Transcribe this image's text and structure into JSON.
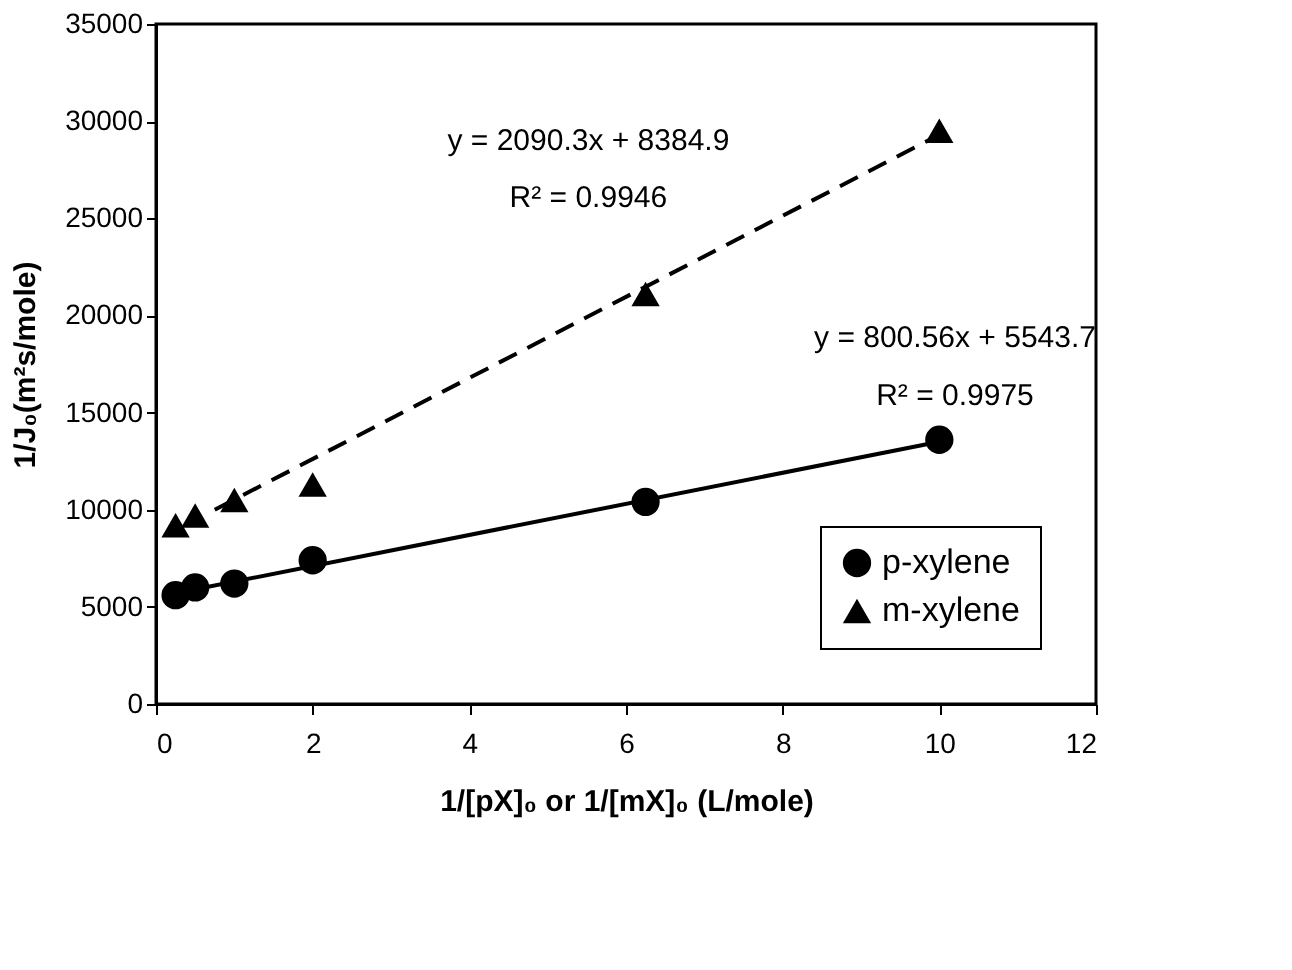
{
  "chart_data": {
    "type": "scatter",
    "xlabel": "1/[pX]₀ or 1/[mX]₀ (L/mole)",
    "ylabel": "1/J₀(m²s/mole)",
    "xlim": [
      0,
      12
    ],
    "xticks": [
      0,
      2,
      4,
      6,
      8,
      10,
      12
    ],
    "ylim": [
      0,
      35000
    ],
    "yticks": [
      0,
      5000,
      10000,
      15000,
      20000,
      25000,
      30000,
      35000
    ],
    "grid": false,
    "legend": "bottom right",
    "series": [
      {
        "name": "p-xylene",
        "marker": "circle",
        "color": "#000000",
        "x": [
          0.25,
          0.5,
          1,
          2,
          6.25,
          10
        ],
        "values": [
          5600,
          6000,
          6200,
          7400,
          10400,
          13600
        ]
      },
      {
        "name": "m-xylene",
        "marker": "triangle",
        "color": "#000000",
        "x": [
          0.25,
          0.5,
          1,
          2,
          6.25,
          10
        ],
        "values": [
          9200,
          9700,
          10500,
          11300,
          21100,
          29500
        ]
      },
      {
        "type": "line",
        "line_style": "solid",
        "color": "#000000",
        "x": [
          0.25,
          10
        ],
        "values": [
          5700,
          13500
        ]
      },
      {
        "type": "line",
        "line_style": "dashed",
        "color": "#000000",
        "x": [
          0.75,
          10
        ],
        "values": [
          10000,
          29300
        ]
      }
    ],
    "annotations": [
      "y = 2090.3x + 8384.9",
      "R² = 0.9946",
      "y = 800.56x + 5543.7",
      "R² = 0.9975"
    ]
  }
}
